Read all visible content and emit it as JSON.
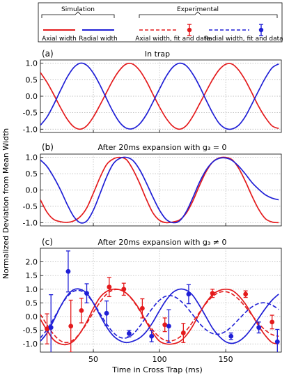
{
  "legend": {
    "simulation_heading": "Simulation",
    "experimental_heading": "Experimental",
    "items": [
      {
        "label": "Axial width",
        "color": "#e41a1c",
        "style": "solid"
      },
      {
        "label": "Radial width",
        "color": "#1f1fd6",
        "style": "solid"
      },
      {
        "label": "Axial width, fit and data",
        "color": "#e41a1c",
        "style": "dashed-errorbar"
      },
      {
        "label": "Radial width, fit and data",
        "color": "#1f1fd6",
        "style": "dashed-errorbar"
      }
    ]
  },
  "ylabel": "Normalized Deviation from Mean Width",
  "xlabel": "Time in Cross Trap (ms)",
  "colors": {
    "axial": "#e41a1c",
    "radial": "#1f1fd6"
  },
  "chart_data": [
    {
      "type": "line",
      "panel": "(a)",
      "title": "In trap",
      "xlim": [
        10,
        192
      ],
      "ylim": [
        -1.1,
        1.1
      ],
      "xticks": [
        50,
        100,
        150
      ],
      "yticks": [
        -1.0,
        -0.5,
        0.0,
        0.5,
        1.0
      ],
      "ytick_labels": [
        "-1.0",
        "-0.5",
        "0.0",
        "0.5",
        "1.0"
      ],
      "grid": true,
      "x": [
        10,
        15,
        20,
        25,
        30,
        35,
        40,
        45,
        50,
        55,
        60,
        65,
        70,
        75,
        80,
        85,
        90,
        95,
        100,
        105,
        110,
        115,
        120,
        125,
        130,
        135,
        140,
        145,
        150,
        155,
        160,
        165,
        170,
        175,
        180,
        185,
        190
      ],
      "series": [
        {
          "name": "Axial width",
          "values": [
            0.72,
            0.42,
            0.06,
            -0.33,
            -0.68,
            -0.92,
            -1.0,
            -0.9,
            -0.63,
            -0.27,
            0.12,
            0.5,
            0.8,
            0.98,
            0.97,
            0.78,
            0.46,
            0.06,
            -0.33,
            -0.67,
            -0.91,
            -1.0,
            -0.9,
            -0.62,
            -0.25,
            0.13,
            0.5,
            0.8,
            0.97,
            0.97,
            0.78,
            0.47,
            0.08,
            -0.32,
            -0.65,
            -0.9,
            -0.98
          ]
        },
        {
          "name": "Radial width",
          "values": [
            -0.88,
            -0.63,
            -0.26,
            0.16,
            0.56,
            0.86,
            1.0,
            0.94,
            0.7,
            0.34,
            -0.08,
            -0.48,
            -0.8,
            -0.97,
            -0.98,
            -0.84,
            -0.56,
            -0.18,
            0.22,
            0.6,
            0.88,
            1.0,
            0.93,
            0.68,
            0.32,
            -0.1,
            -0.5,
            -0.82,
            -0.98,
            -0.99,
            -0.87,
            -0.6,
            -0.22,
            0.18,
            0.56,
            0.86,
            0.98
          ]
        }
      ]
    },
    {
      "type": "line",
      "panel": "(b)",
      "title": "After 20ms expansion with g₃ = 0",
      "xlim": [
        10,
        192
      ],
      "ylim": [
        -1.1,
        1.1
      ],
      "xticks": [
        50,
        100,
        150
      ],
      "yticks": [
        -1.0,
        -0.5,
        0.0,
        0.5,
        1.0
      ],
      "ytick_labels": [
        "-1.0",
        "-0.5",
        "0.0",
        "0.5",
        "1.0"
      ],
      "grid": true,
      "x": [
        10,
        15,
        20,
        25,
        30,
        35,
        40,
        45,
        50,
        55,
        60,
        65,
        70,
        75,
        80,
        85,
        90,
        95,
        100,
        105,
        110,
        115,
        120,
        125,
        130,
        135,
        140,
        145,
        150,
        155,
        160,
        165,
        170,
        175,
        180,
        185,
        190
      ],
      "series": [
        {
          "name": "Axial width",
          "values": [
            -0.3,
            -0.68,
            -0.9,
            -0.97,
            -0.99,
            -0.95,
            -0.82,
            -0.55,
            -0.1,
            0.38,
            0.78,
            0.95,
            1.0,
            0.93,
            0.62,
            0.2,
            -0.28,
            -0.7,
            -0.93,
            -1.0,
            -0.98,
            -0.92,
            -0.72,
            -0.35,
            0.12,
            0.55,
            0.85,
            0.98,
            1.0,
            0.92,
            0.65,
            0.25,
            -0.2,
            -0.6,
            -0.88,
            -0.98,
            -1.0
          ]
        },
        {
          "name": "Radial width",
          "values": [
            0.92,
            0.72,
            0.4,
            0.02,
            -0.42,
            -0.8,
            -1.0,
            -0.95,
            -0.62,
            -0.12,
            0.4,
            0.8,
            0.97,
            1.0,
            0.9,
            0.62,
            0.22,
            -0.22,
            -0.62,
            -0.9,
            -1.0,
            -0.95,
            -0.68,
            -0.25,
            0.22,
            0.6,
            0.85,
            0.97,
            0.98,
            0.9,
            0.72,
            0.48,
            0.22,
            0.02,
            -0.15,
            -0.25,
            -0.3
          ]
        }
      ]
    },
    {
      "type": "line",
      "panel": "(c)",
      "title": "After 20ms expansion with g₃ ≠ 0",
      "xlim": [
        10,
        192
      ],
      "ylim": [
        -1.3,
        2.5
      ],
      "xticks": [
        50,
        100,
        150
      ],
      "xtick_labels": [
        "50",
        "100",
        "150"
      ],
      "yticks": [
        -1.0,
        -0.5,
        0.0,
        0.5,
        1.0,
        1.5,
        2.0
      ],
      "ytick_labels": [
        "-1.0",
        "-0.5",
        "0.0",
        "0.5",
        "1.0",
        "1.5",
        "2.0"
      ],
      "grid": true,
      "x": [
        10,
        15,
        20,
        25,
        30,
        35,
        40,
        45,
        50,
        55,
        60,
        65,
        70,
        75,
        80,
        85,
        90,
        95,
        100,
        105,
        110,
        115,
        120,
        125,
        130,
        135,
        140,
        145,
        150,
        155,
        160,
        165,
        170,
        175,
        180,
        185,
        190
      ],
      "series": [
        {
          "name": "Axial width (simulation)",
          "values": [
            -0.1,
            -0.5,
            -0.85,
            -1.0,
            -1.02,
            -0.9,
            -0.6,
            -0.2,
            0.3,
            0.7,
            0.92,
            1.0,
            0.98,
            0.85,
            0.6,
            0.25,
            -0.2,
            -0.6,
            -0.9,
            -1.0,
            -1.0,
            -0.92,
            -0.7,
            -0.35,
            0.1,
            0.5,
            0.8,
            0.95,
            1.0,
            0.95,
            0.75,
            0.45,
            0.05,
            -0.35,
            -0.7,
            -0.95,
            -1.0
          ]
        },
        {
          "name": "Radial width (simulation)",
          "values": [
            -0.9,
            -0.6,
            -0.15,
            0.35,
            0.75,
            0.98,
            1.0,
            0.85,
            0.5,
            0.05,
            -0.38,
            -0.7,
            -0.88,
            -0.95,
            -0.9,
            -0.78,
            -0.55,
            -0.2,
            0.22,
            0.6,
            0.88,
            1.0,
            0.97,
            0.78,
            0.42,
            0.0,
            -0.42,
            -0.72,
            -0.92,
            -0.98,
            -0.9,
            -0.7,
            -0.4,
            -0.05,
            0.3,
            0.6,
            0.82
          ]
        },
        {
          "name": "Axial width fit",
          "values": [
            0.08,
            -0.3,
            -0.65,
            -0.88,
            -0.95,
            -0.85,
            -0.6,
            -0.25,
            0.15,
            0.52,
            0.82,
            0.97,
            0.98,
            0.85,
            0.58,
            0.22,
            -0.16,
            -0.5,
            -0.75,
            -0.88,
            -0.88,
            -0.76,
            -0.52,
            -0.2,
            0.14,
            0.47,
            0.73,
            0.88,
            0.91,
            0.82,
            0.62,
            0.35,
            0.04,
            -0.26,
            -0.5,
            -0.66,
            -0.72
          ]
        },
        {
          "name": "Radial width fit",
          "values": [
            -0.78,
            -0.48,
            -0.08,
            0.35,
            0.71,
            0.92,
            0.95,
            0.8,
            0.5,
            0.12,
            -0.27,
            -0.58,
            -0.76,
            -0.78,
            -0.64,
            -0.36,
            -0.01,
            0.33,
            0.6,
            0.75,
            0.75,
            0.61,
            0.37,
            0.07,
            -0.24,
            -0.48,
            -0.62,
            -0.64,
            -0.54,
            -0.34,
            -0.09,
            0.16,
            0.36,
            0.48,
            0.5,
            0.42,
            0.26
          ]
        }
      ],
      "axial_data": [
        {
          "x": 15,
          "y": -0.45,
          "err": 0.55
        },
        {
          "x": 33,
          "y": -0.35,
          "err": 0.95
        },
        {
          "x": 41,
          "y": 0.22,
          "err": 0.45
        },
        {
          "x": 62,
          "y": 1.08,
          "err": 0.35
        },
        {
          "x": 73,
          "y": 1.0,
          "err": 0.22
        },
        {
          "x": 87,
          "y": 0.3,
          "err": 0.35
        },
        {
          "x": 104,
          "y": -0.3,
          "err": 0.25
        },
        {
          "x": 118,
          "y": -0.6,
          "err": 0.35
        },
        {
          "x": 140,
          "y": 0.85,
          "err": 0.15
        },
        {
          "x": 165,
          "y": 0.82,
          "err": 0.12
        },
        {
          "x": 185,
          "y": -0.2,
          "err": 0.25
        }
      ],
      "radial_data": [
        {
          "x": 18,
          "y": -0.4,
          "err": 1.2
        },
        {
          "x": 31,
          "y": 1.65,
          "err": 0.75
        },
        {
          "x": 45,
          "y": 0.85,
          "err": 0.35
        },
        {
          "x": 60,
          "y": 0.12,
          "err": 0.45
        },
        {
          "x": 77,
          "y": -0.62,
          "err": 0.12
        },
        {
          "x": 94,
          "y": -0.72,
          "err": 0.2
        },
        {
          "x": 107,
          "y": -0.35,
          "err": 0.6
        },
        {
          "x": 122,
          "y": 0.82,
          "err": 0.35
        },
        {
          "x": 154,
          "y": -0.72,
          "err": 0.12
        },
        {
          "x": 175,
          "y": -0.4,
          "err": 0.2
        },
        {
          "x": 189,
          "y": -0.92,
          "err": 0.45
        }
      ]
    }
  ]
}
